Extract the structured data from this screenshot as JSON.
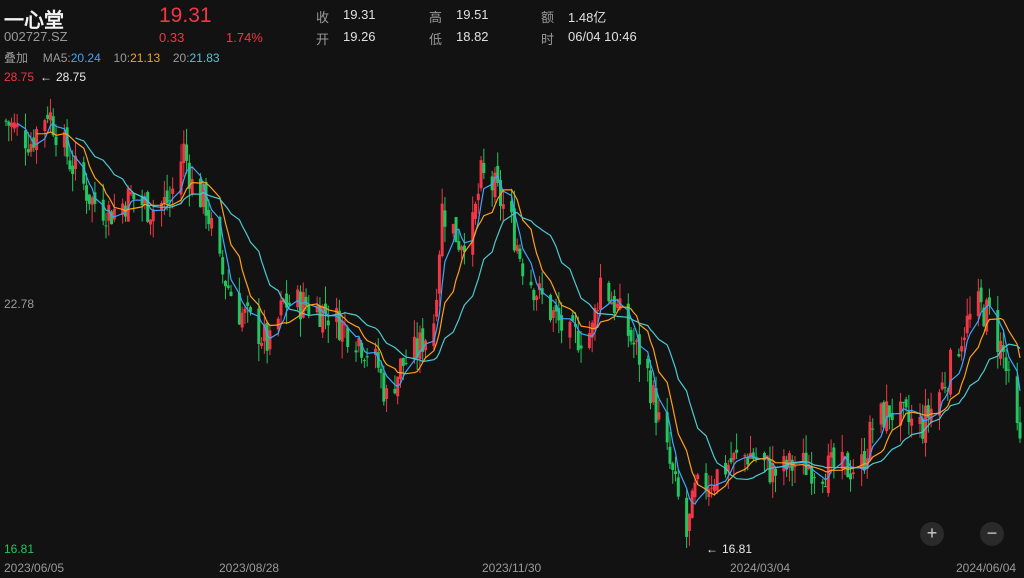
{
  "header": {
    "name": "一心堂",
    "code": "002727.SZ",
    "price": "19.31",
    "change": "0.33",
    "change_pct": "1.74%",
    "stats": [
      {
        "label": "收",
        "value": "19.31"
      },
      {
        "label": "高",
        "value": "19.51"
      },
      {
        "label": "额",
        "value": "1.48亿"
      },
      {
        "label": "开",
        "value": "19.26"
      },
      {
        "label": "低",
        "value": "18.82"
      },
      {
        "label": "时",
        "value": "06/04 10:46"
      }
    ]
  },
  "ma_legend": {
    "overlay": "叠加",
    "ma5_label": "MA5:",
    "ma5_value": "20.24",
    "ma10_label": "10:",
    "ma10_value": "21.13",
    "ma20_label": "20:",
    "ma20_value": "21.83"
  },
  "zoom": {
    "in_label": "+",
    "out_label": "−"
  },
  "colors": {
    "up": "#f23645",
    "down": "#22c55e",
    "ma5": "#3ea6ff",
    "ma10": "#ff9f1a",
    "ma20": "#4cc9d0",
    "price": "#f23645"
  },
  "chart_data": {
    "type": "candlestick",
    "y_axis_labels": [
      "28.75",
      "22.78",
      "16.81"
    ],
    "ylim": [
      16.81,
      28.75
    ],
    "x_tick_labels": [
      "2023/06/05",
      "2023/08/28",
      "2023/11/30",
      "2024/03/04",
      "2024/06/04"
    ],
    "max_marker": "28.75",
    "min_marker": "16.81",
    "grid": false,
    "series": [
      {
        "name": "MA5",
        "value": 20.24
      },
      {
        "name": "MA10",
        "value": 21.13
      },
      {
        "name": "MA20",
        "value": 21.83
      }
    ],
    "close_path": [
      [
        "2023-06-05",
        27.6
      ],
      [
        "2023-06-14",
        27.1
      ],
      [
        "2023-06-20",
        27.9
      ],
      [
        "2023-06-28",
        26.6
      ],
      [
        "2023-07-06",
        25.6
      ],
      [
        "2023-07-13",
        25.3
      ],
      [
        "2023-07-20",
        25.7
      ],
      [
        "2023-07-27",
        25.4
      ],
      [
        "2023-08-03",
        25.6
      ],
      [
        "2023-08-08",
        26.9
      ],
      [
        "2023-08-11",
        26.0
      ],
      [
        "2023-08-16",
        25.5
      ],
      [
        "2023-08-21",
        23.9
      ],
      [
        "2023-08-28",
        22.8
      ],
      [
        "2023-09-04",
        22.3
      ],
      [
        "2023-09-08",
        21.9
      ],
      [
        "2023-09-13",
        23.0
      ],
      [
        "2023-09-20",
        23.0
      ],
      [
        "2023-09-28",
        22.8
      ],
      [
        "2023-10-10",
        22.1
      ],
      [
        "2023-10-17",
        21.4
      ],
      [
        "2023-10-20",
        20.6
      ],
      [
        "2023-10-25",
        21.4
      ],
      [
        "2023-10-31",
        21.8
      ],
      [
        "2023-11-06",
        22.6
      ],
      [
        "2023-11-09",
        25.4
      ],
      [
        "2023-11-15",
        24.6
      ],
      [
        "2023-11-20",
        24.9
      ],
      [
        "2023-11-23",
        26.2
      ],
      [
        "2023-11-28",
        25.9
      ],
      [
        "2023-12-04",
        25.0
      ],
      [
        "2023-12-08",
        24.0
      ],
      [
        "2023-12-14",
        23.2
      ],
      [
        "2023-12-20",
        22.6
      ],
      [
        "2023-12-25",
        22.1
      ],
      [
        "2024-01-02",
        22.3
      ],
      [
        "2024-01-05",
        23.6
      ],
      [
        "2024-01-10",
        23.0
      ],
      [
        "2024-01-16",
        22.1
      ],
      [
        "2024-01-22",
        21.2
      ],
      [
        "2024-01-26",
        20.0
      ],
      [
        "2024-01-31",
        18.6
      ],
      [
        "2024-02-05",
        17.1
      ],
      [
        "2024-02-08",
        18.2
      ],
      [
        "2024-02-21",
        19.0
      ],
      [
        "2024-02-28",
        19.2
      ],
      [
        "2024-03-04",
        18.9
      ],
      [
        "2024-03-08",
        18.7
      ],
      [
        "2024-03-14",
        18.9
      ],
      [
        "2024-03-20",
        18.9
      ],
      [
        "2024-03-26",
        18.8
      ],
      [
        "2024-04-01",
        18.8
      ],
      [
        "2024-04-08",
        18.9
      ],
      [
        "2024-04-12",
        19.9
      ],
      [
        "2024-04-18",
        20.3
      ],
      [
        "2024-04-24",
        20.0
      ],
      [
        "2024-04-30",
        19.9
      ],
      [
        "2024-05-09",
        21.2
      ],
      [
        "2024-05-15",
        22.4
      ],
      [
        "2024-05-20",
        22.9
      ],
      [
        "2024-05-24",
        22.7
      ],
      [
        "2024-05-29",
        21.7
      ],
      [
        "2024-05-31",
        20.9
      ],
      [
        "2024-06-04",
        19.31
      ]
    ]
  }
}
